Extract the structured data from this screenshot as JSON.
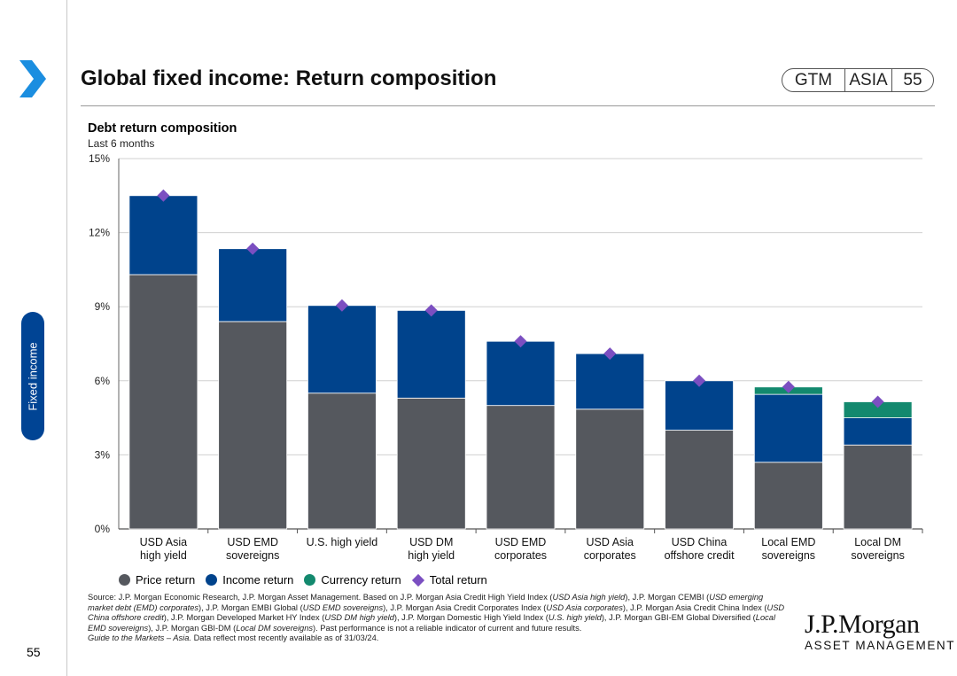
{
  "header": {
    "title": "Global fixed income: Return composition",
    "badge": [
      "GTM",
      "ASIA",
      "55"
    ]
  },
  "side_tab": {
    "label": "Fixed income"
  },
  "chart_heading": {
    "title": "Debt return composition",
    "subtitle": "Last 6 months"
  },
  "legend": [
    {
      "label": "Price return",
      "color": "#55585e",
      "shape": "circle"
    },
    {
      "label": "Income return",
      "color": "#00438c",
      "shape": "circle"
    },
    {
      "label": "Currency return",
      "color": "#13896e",
      "shape": "circle"
    },
    {
      "label": "Total return",
      "color": "#7b4fc1",
      "shape": "diamond"
    }
  ],
  "chart_data": {
    "type": "bar",
    "stacked": true,
    "title": "Debt return composition",
    "subtitle": "Last 6 months",
    "ylim": [
      0,
      15
    ],
    "yticks": [
      "0%",
      "3%",
      "6%",
      "9%",
      "12%",
      "15%"
    ],
    "ytick_values": [
      0,
      3,
      6,
      9,
      12,
      15
    ],
    "categories": [
      [
        "USD Asia",
        "high yield"
      ],
      [
        "USD EMD",
        "sovereigns"
      ],
      [
        "U.S. high yield"
      ],
      [
        "USD DM",
        "high yield"
      ],
      [
        "USD EMD",
        "corporates"
      ],
      [
        "USD Asia",
        "corporates"
      ],
      [
        "USD China",
        "offshore credit"
      ],
      [
        "Local EMD",
        "sovereigns"
      ],
      [
        "Local DM",
        "sovereigns"
      ]
    ],
    "series": [
      {
        "name": "Price return",
        "color": "#55585e",
        "values": [
          10.3,
          8.4,
          5.5,
          5.3,
          5.0,
          4.85,
          4.0,
          2.7,
          3.4
        ]
      },
      {
        "name": "Income return",
        "color": "#00438c",
        "values": [
          3.2,
          2.95,
          3.55,
          3.55,
          2.6,
          2.25,
          2.0,
          2.75,
          1.1
        ]
      },
      {
        "name": "Currency return",
        "color": "#13896e",
        "values": [
          0,
          0,
          0,
          0,
          0,
          0,
          0,
          0.3,
          0.65
        ]
      }
    ],
    "total_return": {
      "name": "Total return",
      "color": "#7b4fc1",
      "values": [
        13.5,
        11.35,
        9.05,
        8.85,
        7.6,
        7.1,
        6.0,
        5.75,
        5.15
      ]
    }
  },
  "source": {
    "text": "Source: J.P. Morgan Economic Research, J.P. Morgan Asset Management. Based on J.P. Morgan Asia Credit High Yield Index (USD Asia high yield), J.P. Morgan CEMBI (USD emerging market debt (EMD) corporates), J.P. Morgan EMBI Global (USD EMD sovereigns), J.P. Morgan Asia Credit Corporates Index (USD Asia corporates), J.P. Morgan Asia Credit China Index (USD China offshore credit), J.P. Morgan Developed Market HY Index (USD DM high yield), J.P. Morgan Domestic High Yield Index (U.S. high yield), J.P. Morgan GBI-EM Global Diversified (Local EMD sovereigns), J.P. Morgan GBI-DM (Local DM sovereigns). Past performance is not a reliable indicator of current and future results.",
    "guide": "Guide to the Markets – Asia.",
    "date_note": "Data reflect most recently available as of 31/03/24."
  },
  "footer": {
    "page_number": "55",
    "logo_line1": "J.P.Morgan",
    "logo_line2": "ASSET MANAGEMENT"
  }
}
